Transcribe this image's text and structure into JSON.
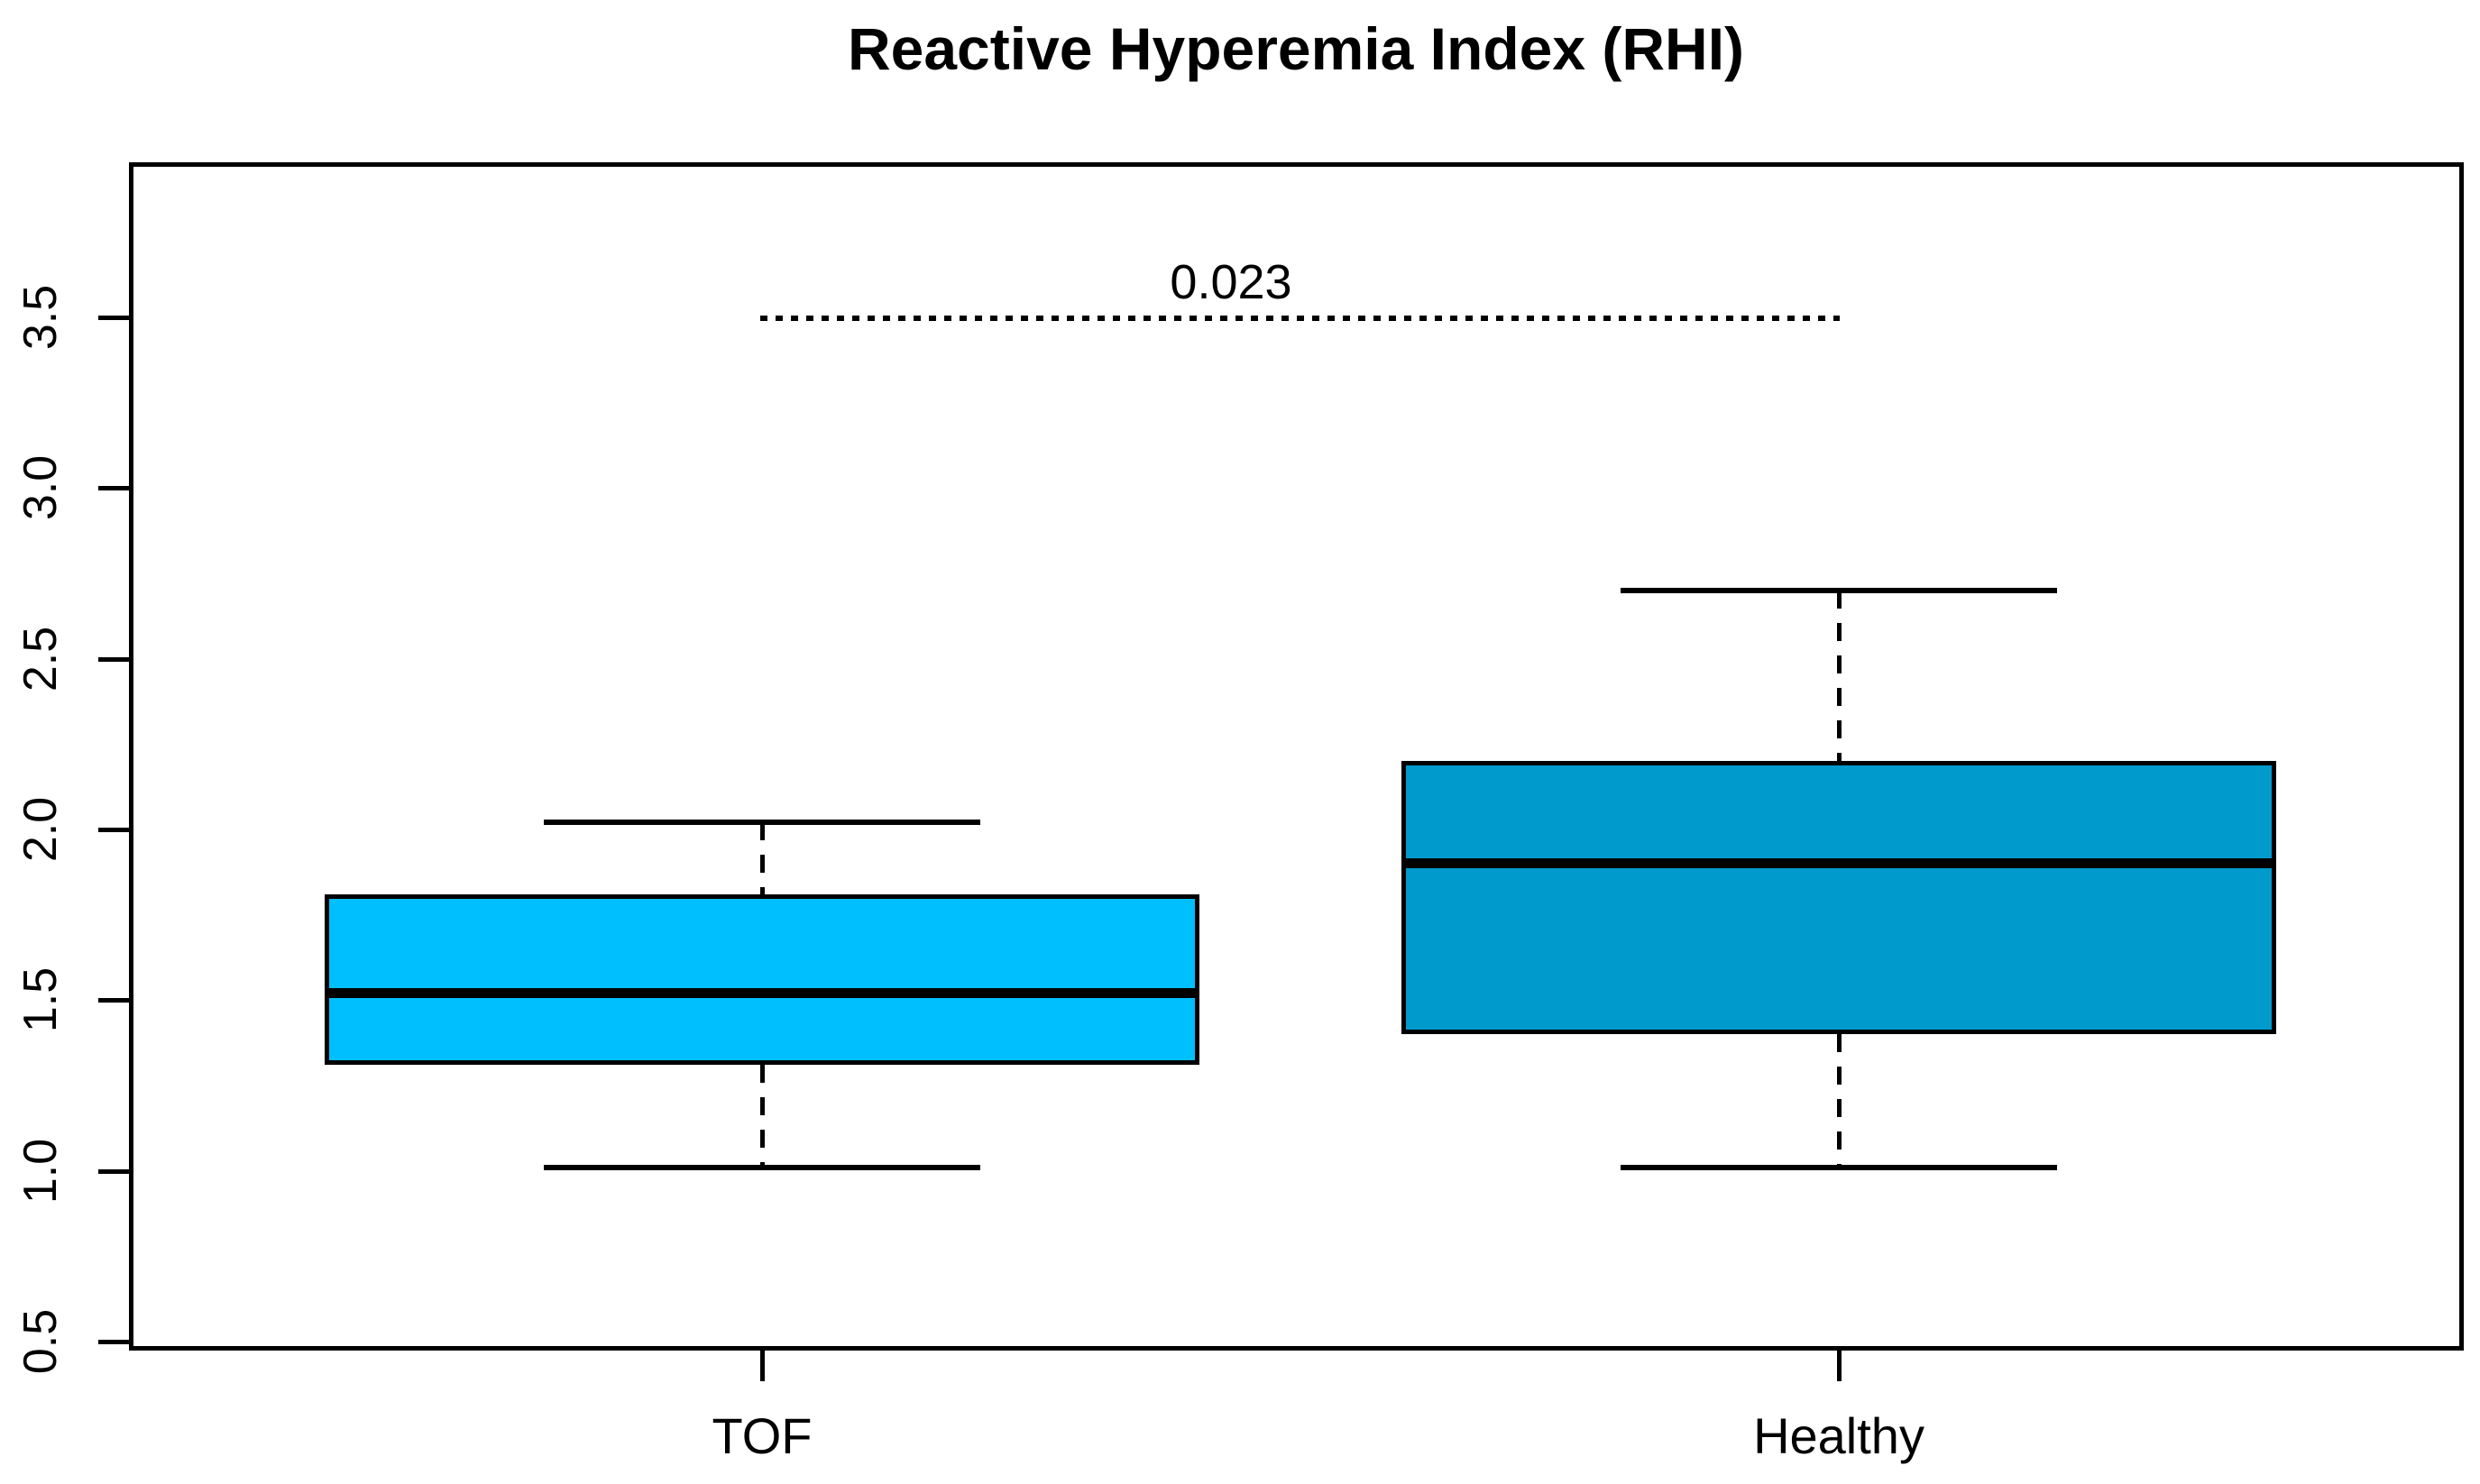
{
  "title": "Reactive Hyperemia Index (RHI)",
  "annotation": {
    "p_value": "0.023"
  },
  "y_axis": {
    "tick_labels": [
      "3.5",
      "3.0",
      "2.5",
      "2.0",
      "1.5",
      "1.0",
      "0.5"
    ]
  },
  "x_axis": {
    "labels": [
      "TOF",
      "Healthy"
    ]
  },
  "colors": {
    "tof_box_fill": "#00BFFF",
    "healthy_box_fill": "#009ACD",
    "line": "#000000",
    "background": "#FFFFFF"
  },
  "chart_data": {
    "type": "boxplot",
    "title": "Reactive Hyperemia Index (RHI)",
    "categories": [
      "TOF",
      "Healthy"
    ],
    "series": [
      {
        "name": "TOF",
        "whisker_low": 1.01,
        "q1": 1.31,
        "median": 1.52,
        "q3": 1.81,
        "whisker_high": 2.02,
        "fill_color": "#00BFFF"
      },
      {
        "name": "Healthy",
        "whisker_low": 1.01,
        "q1": 1.4,
        "median": 1.9,
        "q3": 2.2,
        "whisker_high": 2.7,
        "fill_color": "#009ACD"
      }
    ],
    "xlabel": "",
    "ylabel": "",
    "ylim": [
      0.45,
      3.95
    ],
    "y_ticks": [
      3.5,
      3.0,
      2.5,
      2.0,
      1.5,
      1.0,
      0.5
    ],
    "grid": false,
    "legend": false,
    "annotations": [
      {
        "type": "comparison-line",
        "text": "0.023",
        "y": 3.5,
        "x_from": "TOF",
        "x_to": "Healthy",
        "line_style": "dotted"
      }
    ]
  }
}
